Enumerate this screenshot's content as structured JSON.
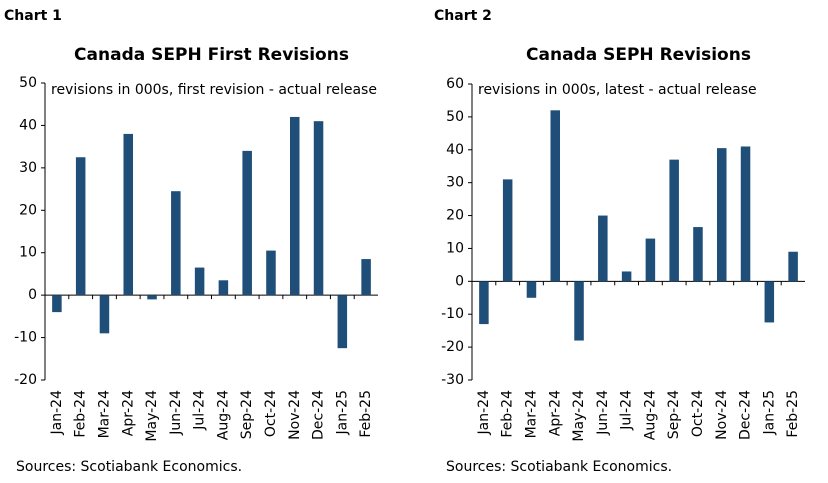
{
  "chart_data": [
    {
      "type": "bar",
      "label": "Chart 1",
      "title": "Canada SEPH First Revisions",
      "subtitle": "revisions in 000s, first revision - actual release",
      "source": "Sources: Scotiabank Economics.",
      "categories": [
        "Jan-24",
        "Feb-24",
        "Mar-24",
        "Apr-24",
        "May-24",
        "Jun-24",
        "Jul-24",
        "Aug-24",
        "Sep-24",
        "Oct-24",
        "Nov-24",
        "Dec-24",
        "Jan-25",
        "Feb-25"
      ],
      "values": [
        -4,
        32.5,
        -9,
        38,
        -1,
        24.5,
        6.5,
        3.5,
        34,
        10.5,
        42,
        41,
        -12.5,
        8.5
      ],
      "color": "#1f4e79",
      "ylim": [
        -20,
        50
      ],
      "yticks": [
        -20,
        -10,
        0,
        10,
        20,
        30,
        40,
        50
      ],
      "grid": false
    },
    {
      "type": "bar",
      "label": "Chart 2",
      "title": "Canada SEPH Revisions",
      "subtitle": "revisions in 000s, latest - actual release",
      "source": "Sources: Scotiabank Economics.",
      "categories": [
        "Jan-24",
        "Feb-24",
        "Mar-24",
        "Apr-24",
        "May-24",
        "Jun-24",
        "Jul-24",
        "Aug-24",
        "Sep-24",
        "Oct-24",
        "Nov-24",
        "Dec-24",
        "Jan-25",
        "Feb-25"
      ],
      "values": [
        -13,
        31,
        -5,
        52,
        -18,
        20,
        3,
        13,
        37,
        16.5,
        40.5,
        41,
        -12.5,
        9
      ],
      "color": "#1f4e79",
      "ylim": [
        -30,
        60
      ],
      "yticks": [
        -30,
        -20,
        -10,
        0,
        10,
        20,
        30,
        40,
        50,
        60
      ],
      "grid": false
    }
  ]
}
